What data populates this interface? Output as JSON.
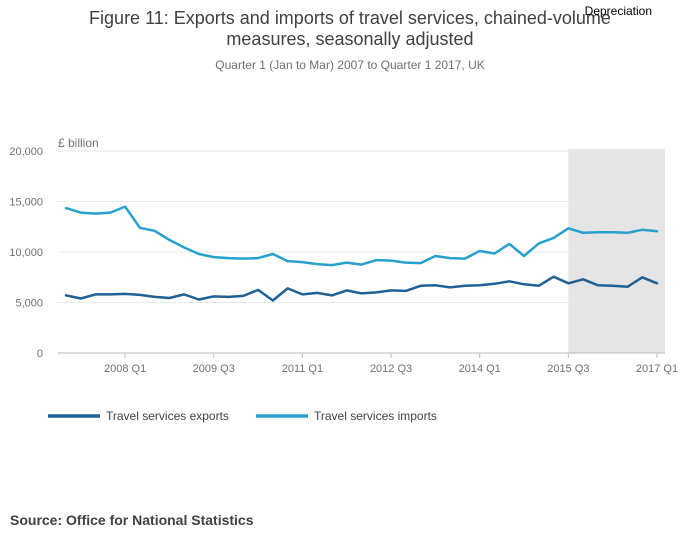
{
  "chart_data": {
    "type": "line",
    "title_line1": "Figure 11: Exports and imports of travel services, chained-volume",
    "title_line2": "measures, seasonally adjusted",
    "subtitle": "Quarter 1 (Jan to Mar) 2007 to Quarter 1 2017, UK",
    "ylabel": "£ billion",
    "ylim": [
      0,
      20000
    ],
    "yticks": [
      0,
      5000,
      10000,
      15000,
      20000
    ],
    "ytick_labels": [
      "0",
      "5,000",
      "10,000",
      "15,000",
      "20,000"
    ],
    "x_count": 41,
    "xticks": [
      {
        "index": 4,
        "label": "2008 Q1"
      },
      {
        "index": 10,
        "label": "2009 Q3"
      },
      {
        "index": 16,
        "label": "2011 Q1"
      },
      {
        "index": 22,
        "label": "2012 Q3"
      },
      {
        "index": 28,
        "label": "2014 Q1"
      },
      {
        "index": 34,
        "label": "2015 Q3"
      },
      {
        "index": 40,
        "label": "2017 Q1"
      }
    ],
    "shaded_region": {
      "start_index": 34,
      "end_index": 40,
      "label": "Depreciation"
    },
    "series": [
      {
        "name": "Travel services exports",
        "color": "#206095",
        "values": [
          5700,
          5400,
          5800,
          5800,
          5850,
          5750,
          5550,
          5450,
          5800,
          5300,
          5600,
          5550,
          5650,
          6250,
          5200,
          6400,
          5800,
          5950,
          5700,
          6200,
          5900,
          6000,
          6200,
          6150,
          6650,
          6700,
          6500,
          6650,
          6700,
          6850,
          7100,
          6800,
          6650,
          7550,
          6900,
          7300,
          6700,
          6650,
          6550,
          7500,
          6900
        ]
      },
      {
        "name": "Travel services imports",
        "color": "#27a0cc",
        "values": [
          14350,
          13900,
          13800,
          13900,
          14500,
          12400,
          12100,
          11200,
          10450,
          9800,
          9500,
          9400,
          9350,
          9400,
          9800,
          9100,
          9000,
          8800,
          8700,
          8950,
          8750,
          9200,
          9150,
          8950,
          8900,
          9600,
          9400,
          9350,
          10100,
          9850,
          10800,
          9600,
          10850,
          11400,
          12350,
          11900,
          11950,
          11950,
          11900,
          12200,
          12050
        ]
      }
    ]
  },
  "source": {
    "label": "Source:",
    "value": "Office for National Statistics"
  }
}
